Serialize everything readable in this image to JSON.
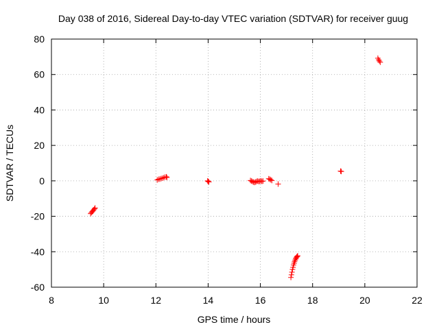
{
  "chart_data": {
    "type": "scatter",
    "title": "Day 038 of 2016, Sidereal Day-to-day VTEC variation (SDTVAR) for receiver guug",
    "xlabel": "GPS time / hours",
    "ylabel": "SDTVAR / TECUs",
    "xlim": [
      8,
      22
    ],
    "ylim": [
      -60,
      80
    ],
    "xticks": [
      8,
      10,
      12,
      14,
      16,
      18,
      20,
      22
    ],
    "yticks": [
      -60,
      -40,
      -20,
      0,
      20,
      40,
      60,
      80
    ],
    "grid": true,
    "marker": "+",
    "color": "#ff0000",
    "series": [
      {
        "points": [
          [
            9.5,
            -18.5
          ],
          [
            9.53,
            -17.9
          ],
          [
            9.56,
            -17.4
          ],
          [
            9.59,
            -16.9
          ],
          [
            9.62,
            -16.3
          ],
          [
            9.65,
            -15.8
          ],
          [
            9.67,
            -15.3
          ],
          [
            12.05,
            0.5
          ],
          [
            12.1,
            0.9
          ],
          [
            12.15,
            1.0
          ],
          [
            12.2,
            1.3
          ],
          [
            12.25,
            1.5
          ],
          [
            12.3,
            1.8
          ],
          [
            12.35,
            2.1
          ],
          [
            12.4,
            2.3
          ],
          [
            12.42,
            1.9
          ],
          [
            13.98,
            0.0
          ],
          [
            14.0,
            -0.3
          ],
          [
            14.03,
            -0.6
          ],
          [
            15.62,
            0.2
          ],
          [
            15.66,
            -0.1
          ],
          [
            15.7,
            -0.4
          ],
          [
            15.74,
            -0.7
          ],
          [
            15.78,
            -0.9
          ],
          [
            15.82,
            -0.6
          ],
          [
            15.86,
            -0.3
          ],
          [
            15.9,
            -0.1
          ],
          [
            15.94,
            -0.4
          ],
          [
            15.98,
            -0.2
          ],
          [
            16.02,
            0.0
          ],
          [
            16.06,
            -0.3
          ],
          [
            16.1,
            -0.1
          ],
          [
            16.32,
            1.2
          ],
          [
            16.36,
            0.9
          ],
          [
            16.4,
            0.6
          ],
          [
            16.44,
            0.2
          ],
          [
            16.68,
            -1.8
          ],
          [
            17.17,
            -54.5
          ],
          [
            17.19,
            -53.0
          ],
          [
            17.21,
            -51.5
          ],
          [
            17.23,
            -50.0
          ],
          [
            17.25,
            -48.8
          ],
          [
            17.27,
            -47.5
          ],
          [
            17.29,
            -46.5
          ],
          [
            17.31,
            -45.6
          ],
          [
            17.33,
            -44.8
          ],
          [
            17.35,
            -44.1
          ],
          [
            17.37,
            -43.5
          ],
          [
            17.39,
            -43.0
          ],
          [
            17.41,
            -42.6
          ],
          [
            17.43,
            -42.3
          ],
          [
            19.07,
            5.5
          ],
          [
            19.1,
            5.3
          ],
          [
            20.5,
            69.2
          ],
          [
            20.53,
            68.3
          ],
          [
            20.56,
            67.6
          ],
          [
            20.59,
            66.9
          ]
        ]
      }
    ]
  }
}
